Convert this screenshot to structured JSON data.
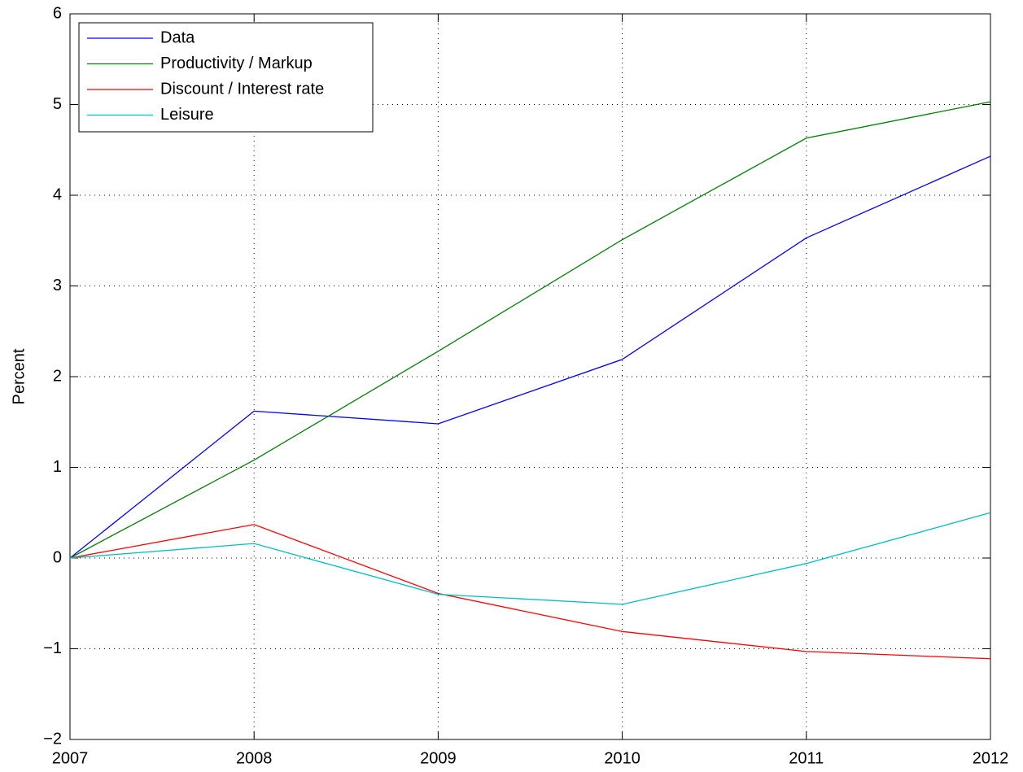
{
  "chart_data": {
    "type": "line",
    "y_label": "Percent",
    "x": [
      2007,
      2008,
      2009,
      2010,
      2011,
      2012
    ],
    "xlim": [
      2007,
      2012
    ],
    "xticks": [
      2007,
      2008,
      2009,
      2010,
      2011,
      2012
    ],
    "ylim": [
      -2,
      6
    ],
    "yticks": [
      {
        "value": -2,
        "label": "−2"
      },
      {
        "value": -1,
        "label": "−1"
      },
      0,
      1,
      2,
      3,
      4,
      5,
      6
    ],
    "grid": true,
    "legend": "upper-left",
    "series": [
      {
        "name": "Data",
        "color": "#0000ff",
        "values": [
          0,
          1.62,
          1.48,
          2.19,
          3.53,
          4.43
        ]
      },
      {
        "name": "Productivity / Markup",
        "color": "#008000",
        "values": [
          0,
          1.08,
          2.28,
          3.51,
          4.63,
          5.03
        ]
      },
      {
        "name": "Discount / Interest rate",
        "color": "#ff0000",
        "values": [
          0,
          0.37,
          -0.39,
          -0.81,
          -1.03,
          -1.11
        ]
      },
      {
        "name": "Leisure",
        "color": "#00bfbf",
        "values": [
          0,
          0.16,
          -0.4,
          -0.51,
          -0.06,
          0.5
        ]
      }
    ]
  }
}
